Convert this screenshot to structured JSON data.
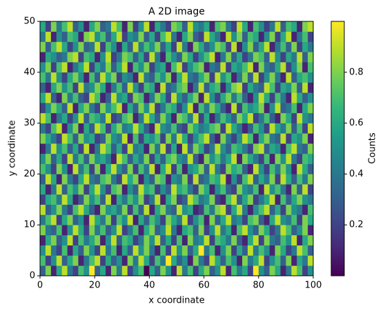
{
  "chart_data": {
    "type": "heatmap",
    "title": "A 2D image",
    "x_label": "x coordinate",
    "y_label": "y coordinate",
    "colorbar_label": "Counts",
    "colormap": "viridis",
    "xlim": [
      0,
      100
    ],
    "ylim": [
      0,
      50
    ],
    "xticks": [
      0,
      20,
      40,
      60,
      80,
      100
    ],
    "yticks": [
      0,
      10,
      20,
      30,
      40,
      50
    ],
    "clim": [
      0,
      1
    ],
    "cticks": [
      0.2,
      0.4,
      0.6,
      0.8
    ],
    "values": [
      [
        0.3,
        0.8,
        0.1,
        0.6,
        0.9,
        0.4,
        0.2,
        0.7,
        0.5,
        1.0,
        0.3,
        0.6,
        0.1,
        0.8,
        0.4,
        0.9,
        0.2,
        0.5,
        0.7,
        0.0,
        0.6,
        0.3,
        0.8,
        0.5,
        0.1,
        0.9,
        0.4,
        0.7,
        0.2,
        0.6,
        0.8,
        0.3,
        0.5,
        0.9,
        0.1,
        0.7,
        0.4,
        0.6,
        0.2,
        1.0,
        0.5,
        0.3,
        0.8,
        0.6,
        0.1,
        0.4,
        0.9,
        0.7,
        0.2,
        0.5
      ],
      [
        0.7,
        0.2,
        0.5,
        0.9,
        0.3,
        0.6,
        0.8,
        0.1,
        0.4,
        0.7,
        0.9,
        0.2,
        0.6,
        0.3,
        0.5,
        0.1,
        0.8,
        0.4,
        0.9,
        0.6,
        0.2,
        0.7,
        0.4,
        1.0,
        0.6,
        0.3,
        0.5,
        0.1,
        0.8,
        0.4,
        0.2,
        0.9,
        0.6,
        0.3,
        0.7,
        0.5,
        0.1,
        0.8,
        0.4,
        0.6,
        0.9,
        0.2,
        0.5,
        0.7,
        0.3,
        0.8,
        0.1,
        0.6,
        0.4,
        0.9
      ],
      [
        0.5,
        0.9,
        0.4,
        0.2,
        0.7,
        0.1,
        0.6,
        0.3,
        0.8,
        0.5,
        0.2,
        0.9,
        0.4,
        0.7,
        0.1,
        0.6,
        0.3,
        0.9,
        0.5,
        0.8,
        0.4,
        0.1,
        0.7,
        0.2,
        0.9,
        0.5,
        0.8,
        0.3,
        0.6,
        1.0,
        0.4,
        0.7,
        0.1,
        0.5,
        0.8,
        0.2,
        0.6,
        0.3,
        0.9,
        0.4,
        0.7,
        0.5,
        0.1,
        0.8,
        0.6,
        0.2,
        0.4,
        0.9,
        0.7,
        0.3
      ],
      [
        0.1,
        0.6,
        0.8,
        0.3,
        0.5,
        0.9,
        0.2,
        0.7,
        0.4,
        0.6,
        0.8,
        0.1,
        0.5,
        0.9,
        0.3,
        0.7,
        0.6,
        0.2,
        0.4,
        0.8,
        0.5,
        0.9,
        0.3,
        0.6,
        0.2,
        0.7,
        0.1,
        0.8,
        0.4,
        0.5,
        0.9,
        0.2,
        0.7,
        0.6,
        0.4,
        0.8,
        0.3,
        0.1,
        0.6,
        0.9,
        0.2,
        0.8,
        0.4,
        0.3,
        0.7,
        0.5,
        0.9,
        0.1,
        0.6,
        0.8
      ],
      [
        0.8,
        0.4,
        0.3,
        0.7,
        0.1,
        0.5,
        0.9,
        0.6,
        0.2,
        0.8,
        0.4,
        0.7,
        0.3,
        0.5,
        0.9,
        0.2,
        0.4,
        0.7,
        0.1,
        0.6,
        0.8,
        0.3,
        0.5,
        0.9,
        0.4,
        0.1,
        0.6,
        0.7,
        0.3,
        0.8,
        0.2,
        0.5,
        0.9,
        0.4,
        0.6,
        0.1,
        0.7,
        0.9,
        0.5,
        0.3,
        0.8,
        0.6,
        0.2,
        0.4,
        0.9,
        0.7,
        0.3,
        0.5,
        0.8,
        0.1
      ],
      [
        0.4,
        0.7,
        0.9,
        0.2,
        0.6,
        0.8,
        0.3,
        0.5,
        0.1,
        0.9,
        0.6,
        0.4,
        0.8,
        0.2,
        0.7,
        0.5,
        0.9,
        0.1,
        0.6,
        0.3,
        0.7,
        0.5,
        0.2,
        0.8,
        0.6,
        0.4,
        0.9,
        0.2,
        0.5,
        0.7,
        0.1,
        0.8,
        0.3,
        0.6,
        0.9,
        0.4,
        0.5,
        0.2,
        0.7,
        0.8,
        0.3,
        0.1,
        0.6,
        0.9,
        0.5,
        0.4,
        0.7,
        0.2,
        0.8,
        0.6
      ],
      [
        0.9,
        0.3,
        0.5,
        0.8,
        0.4,
        0.2,
        0.7,
        0.9,
        0.6,
        0.3,
        0.1,
        0.8,
        0.5,
        0.6,
        0.4,
        0.8,
        0.2,
        0.7,
        0.3,
        0.9,
        0.1,
        0.6,
        0.8,
        0.4,
        0.3,
        0.9,
        0.5,
        0.6,
        0.1,
        0.2,
        0.7,
        0.4,
        0.8,
        0.9,
        0.2,
        0.6,
        0.9,
        0.4,
        0.1,
        0.5,
        0.7,
        0.9,
        0.3,
        0.6,
        0.2,
        0.8,
        0.5,
        0.4,
        0.1,
        0.7
      ],
      [
        0.2,
        0.6,
        0.7,
        0.4,
        0.9,
        0.6,
        0.1,
        0.3,
        0.8,
        0.5,
        0.7,
        0.3,
        0.9,
        0.1,
        0.6,
        0.4,
        0.7,
        0.5,
        0.8,
        0.2,
        0.4,
        0.9,
        0.1,
        0.6,
        0.8,
        0.2,
        0.3,
        0.9,
        0.7,
        0.4,
        0.5,
        0.8,
        0.2,
        0.1,
        0.7,
        0.9,
        0.3,
        0.6,
        0.8,
        0.2,
        0.4,
        0.6,
        0.9,
        0.1,
        0.7,
        0.3,
        0.6,
        0.8,
        0.5,
        0.4
      ],
      [
        0.6,
        0.1,
        0.4,
        0.9,
        0.3,
        0.7,
        0.5,
        0.8,
        0.2,
        0.6,
        0.9,
        0.5,
        0.2,
        0.7,
        0.8,
        0.1,
        0.5,
        0.3,
        0.9,
        0.6,
        0.7,
        0.2,
        0.5,
        0.3,
        0.9,
        0.6,
        0.7,
        0.4,
        0.2,
        0.8,
        0.6,
        0.1,
        0.5,
        0.7,
        0.3,
        0.2,
        0.8,
        0.5,
        0.4,
        0.7,
        0.1,
        0.9,
        0.5,
        0.7,
        0.4,
        0.1,
        0.8,
        0.3,
        0.9,
        0.2
      ],
      [
        0.3,
        0.9,
        0.6,
        0.1,
        0.8,
        0.4,
        0.2,
        0.6,
        0.9,
        0.4,
        0.3,
        0.7,
        0.8,
        0.4,
        0.2,
        0.9,
        0.6,
        0.8,
        0.1,
        0.5,
        0.3,
        0.8,
        0.7,
        0.1,
        0.5,
        0.4,
        0.8,
        0.2,
        0.9,
        0.3,
        0.4,
        0.7,
        0.6,
        0.9,
        0.1,
        0.5,
        0.2,
        0.7,
        0.9,
        0.3,
        0.6,
        0.4,
        0.8,
        0.2,
        0.9,
        0.6,
        0.3,
        0.7,
        0.4,
        0.8
      ],
      [
        0.7,
        0.5,
        0.2,
        0.8,
        0.5,
        0.1,
        0.9,
        0.4,
        0.7,
        0.2,
        0.8,
        0.1,
        0.6,
        0.9,
        0.5,
        0.3,
        0.8,
        0.2,
        0.7,
        0.4,
        0.9,
        0.1,
        0.6,
        0.9,
        0.2,
        0.7,
        0.1,
        0.5,
        0.6,
        0.8,
        0.3,
        0.9,
        0.4,
        0.2,
        0.8,
        0.6,
        0.7,
        0.3,
        0.1,
        0.9,
        0.5,
        0.2,
        0.7,
        0.4,
        0.8,
        0.5,
        0.1,
        0.9,
        0.6,
        0.3
      ],
      [
        0.5,
        0.8,
        0.3,
        0.6,
        0.2,
        0.9,
        0.4,
        0.7,
        0.3,
        0.8,
        0.5,
        0.6,
        0.4,
        0.1,
        0.9,
        0.7,
        0.3,
        0.6,
        0.4,
        0.8,
        0.2,
        0.6,
        0.3,
        0.7,
        0.8,
        0.5,
        0.4,
        0.9,
        0.3,
        0.1,
        0.8,
        0.5,
        0.7,
        0.4,
        0.6,
        0.9,
        0.1,
        0.8,
        0.6,
        0.4,
        0.2,
        0.7,
        0.1,
        0.8,
        0.5,
        0.9,
        0.4,
        0.2,
        0.7,
        0.6
      ],
      [
        0.1,
        0.4,
        0.9,
        0.5,
        0.7,
        0.3,
        0.6,
        0.2,
        0.9,
        0.1,
        0.4,
        0.9,
        0.7,
        0.3,
        0.6,
        0.2,
        0.9,
        0.4,
        0.5,
        0.1,
        0.8,
        0.4,
        0.9,
        0.2,
        0.6,
        0.1,
        0.9,
        0.3,
        0.8,
        0.6,
        0.2,
        0.4,
        0.9,
        0.5,
        0.3,
        0.7,
        0.6,
        0.4,
        0.2,
        0.8,
        0.9,
        0.3,
        0.6,
        0.5,
        0.1,
        0.7,
        0.9,
        0.4,
        0.3,
        0.8
      ],
      [
        0.8,
        0.6,
        0.4,
        0.2,
        0.9,
        0.7,
        0.3,
        0.8,
        0.5,
        0.6,
        0.2,
        0.3,
        0.8,
        0.5,
        0.4,
        0.9,
        0.1,
        0.7,
        0.2,
        0.6,
        0.5,
        0.7,
        0.2,
        0.8,
        0.4,
        0.9,
        0.6,
        0.2,
        0.5,
        0.7,
        0.9,
        0.3,
        0.1,
        0.8,
        0.4,
        0.2,
        0.5,
        0.9,
        0.7,
        0.1,
        0.6,
        0.8,
        0.4,
        0.3,
        0.9,
        0.2,
        0.6,
        0.5,
        0.8,
        0.1
      ],
      [
        0.4,
        0.2,
        0.7,
        0.9,
        0.1,
        0.5,
        0.8,
        0.1,
        0.6,
        0.3,
        0.9,
        0.7,
        0.2,
        0.6,
        0.8,
        0.4,
        0.5,
        0.9,
        0.6,
        0.3,
        0.1,
        0.9,
        0.5,
        0.4,
        0.7,
        0.3,
        0.2,
        0.8,
        0.6,
        0.4,
        0.5,
        0.7,
        0.8,
        0.2,
        0.9,
        0.6,
        0.4,
        0.1,
        0.3,
        0.7,
        0.5,
        0.2,
        0.9,
        0.6,
        0.4,
        0.8,
        0.3,
        0.7,
        0.2,
        0.9
      ],
      [
        0.9,
        0.7,
        0.1,
        0.4,
        0.6,
        0.2,
        0.5,
        0.9,
        0.3,
        0.7,
        0.6,
        0.4,
        0.9,
        0.2,
        0.3,
        0.7,
        0.8,
        0.1,
        0.4,
        0.9,
        0.6,
        0.3,
        0.8,
        0.5,
        0.1,
        0.8,
        0.7,
        0.4,
        0.9,
        0.2,
        0.6,
        0.1,
        0.4,
        0.7,
        0.5,
        0.3,
        0.8,
        0.6,
        0.9,
        0.2,
        0.4,
        0.7,
        0.3,
        0.1,
        0.8,
        0.6,
        0.2,
        0.9,
        0.5,
        0.4
      ],
      [
        0.2,
        0.5,
        0.8,
        0.6,
        0.3,
        0.9,
        0.1,
        0.6,
        0.8,
        0.4,
        0.2,
        0.8,
        0.5,
        0.7,
        0.9,
        0.1,
        0.6,
        0.3,
        0.8,
        0.5,
        0.9,
        0.2,
        0.4,
        0.7,
        0.6,
        0.2,
        0.5,
        0.9,
        0.1,
        0.7,
        0.4,
        0.8,
        0.6,
        0.3,
        0.1,
        0.9,
        0.2,
        0.7,
        0.5,
        0.6,
        0.8,
        0.1,
        0.5,
        0.9,
        0.3,
        0.4,
        0.7,
        0.1,
        0.6,
        0.8
      ],
      [
        0.6,
        0.9,
        0.3,
        0.1,
        0.8,
        0.4,
        0.7,
        0.3,
        0.2,
        0.9,
        0.7,
        0.1,
        0.3,
        0.9,
        0.5,
        0.6,
        0.2,
        0.8,
        0.7,
        0.1,
        0.4,
        0.8,
        0.6,
        0.2,
        0.9,
        0.5,
        0.3,
        0.6,
        0.8,
        0.1,
        0.9,
        0.5,
        0.2,
        0.6,
        0.8,
        0.4,
        0.7,
        0.3,
        0.1,
        0.5,
        0.9,
        0.6,
        0.2,
        0.7,
        0.4,
        0.1,
        0.9,
        0.6,
        0.3,
        0.5
      ],
      [
        0.3,
        0.1,
        0.6,
        0.8,
        0.5,
        0.7,
        0.2,
        0.9,
        0.4,
        0.5,
        0.8,
        0.6,
        0.1,
        0.4,
        0.7,
        0.3,
        0.9,
        0.5,
        0.2,
        0.7,
        0.6,
        0.1,
        0.9,
        0.3,
        0.4,
        0.7,
        0.8,
        0.1,
        0.4,
        0.9,
        0.3,
        0.6,
        0.7,
        0.1,
        0.5,
        0.8,
        0.9,
        0.2,
        0.6,
        0.4,
        0.3,
        0.9,
        0.7,
        0.2,
        0.6,
        0.5,
        0.8,
        0.3,
        0.9,
        0.1
      ],
      [
        0.7,
        0.4,
        0.9,
        0.5,
        0.2,
        0.6,
        0.8,
        0.5,
        0.1,
        0.7,
        0.3,
        0.9,
        0.6,
        0.8,
        0.2,
        0.5,
        0.4,
        0.1,
        0.9,
        0.4,
        0.3,
        0.7,
        0.5,
        0.8,
        0.1,
        0.6,
        0.9,
        0.4,
        0.3,
        0.6,
        0.8,
        0.2,
        0.9,
        0.5,
        0.7,
        0.1,
        0.4,
        0.8,
        0.3,
        0.9,
        0.2,
        0.5,
        0.8,
        0.4,
        0.1,
        0.9,
        0.3,
        0.6,
        0.7,
        0.5
      ],
      [
        0.5,
        0.8,
        0.2,
        0.7,
        0.9,
        0.1,
        0.4,
        0.6,
        0.9,
        0.2,
        0.6,
        0.4,
        0.8,
        0.3,
        0.6,
        0.9,
        0.1,
        0.7,
        0.5,
        0.8,
        0.2,
        0.5,
        0.6,
        0.1,
        0.7,
        0.9,
        0.2,
        0.5,
        0.7,
        0.8,
        0.1,
        0.4,
        0.3,
        0.9,
        0.2,
        0.6,
        0.5,
        0.7,
        0.9,
        0.1,
        0.8,
        0.4,
        0.3,
        0.6,
        0.9,
        0.2,
        0.5,
        0.8,
        0.1,
        0.7
      ],
      [
        0.1,
        0.6,
        0.5,
        0.3,
        0.4,
        0.8,
        0.9,
        0.2,
        0.7,
        0.6,
        0.1,
        0.5,
        0.9,
        0.2,
        0.4,
        0.8,
        0.7,
        0.3,
        0.6,
        0.2,
        0.9,
        0.4,
        0.1,
        0.7,
        0.5,
        0.3,
        0.8,
        0.6,
        0.2,
        0.5,
        0.7,
        0.9,
        0.1,
        0.4,
        0.8,
        0.3,
        0.6,
        0.2,
        0.4,
        0.8,
        0.7,
        0.3,
        0.9,
        0.5,
        0.2,
        0.6,
        0.4,
        0.9,
        0.3,
        0.8
      ],
      [
        0.8,
        0.3,
        0.7,
        0.9,
        0.6,
        0.2,
        0.5,
        0.8,
        0.3,
        0.4,
        0.9,
        0.2,
        0.7,
        0.5,
        0.1,
        0.6,
        0.3,
        0.9,
        0.4,
        0.7,
        0.5,
        0.8,
        0.3,
        0.6,
        0.2,
        0.9,
        0.4,
        0.1,
        0.8,
        0.6,
        0.3,
        0.5,
        0.8,
        0.7,
        0.2,
        0.9,
        0.1,
        0.5,
        0.8,
        0.3,
        0.6,
        0.9,
        0.1,
        0.4,
        0.7,
        0.3,
        0.8,
        0.2,
        0.6,
        0.4
      ],
      [
        0.4,
        0.9,
        0.1,
        0.5,
        0.3,
        0.7,
        0.6,
        0.1,
        0.8,
        0.9,
        0.5,
        0.7,
        0.3,
        0.6,
        0.9,
        0.2,
        0.5,
        0.4,
        0.8,
        0.3,
        0.6,
        0.2,
        0.7,
        0.9,
        0.4,
        0.1,
        0.6,
        0.8,
        0.3,
        0.2,
        0.9,
        0.6,
        0.4,
        0.1,
        0.9,
        0.5,
        0.8,
        0.3,
        0.7,
        0.6,
        0.1,
        0.5,
        0.8,
        0.2,
        0.6,
        0.9,
        0.1,
        0.4,
        0.7,
        0.2
      ],
      [
        0.6,
        0.2,
        0.8,
        0.4,
        0.7,
        0.9,
        0.3,
        0.5,
        0.1,
        0.6,
        0.8,
        0.3,
        0.4,
        0.9,
        0.7,
        0.1,
        0.8,
        0.2,
        0.5,
        0.9,
        0.1,
        0.6,
        0.4,
        0.2,
        0.8,
        0.7,
        0.3,
        0.9,
        0.5,
        0.4,
        0.6,
        0.1,
        0.7,
        0.8,
        0.4,
        0.2,
        0.9,
        0.6,
        0.1,
        0.7,
        0.5,
        0.2,
        0.4,
        0.9,
        0.3,
        0.7,
        0.6,
        0.1,
        0.8,
        0.9
      ]
    ]
  }
}
